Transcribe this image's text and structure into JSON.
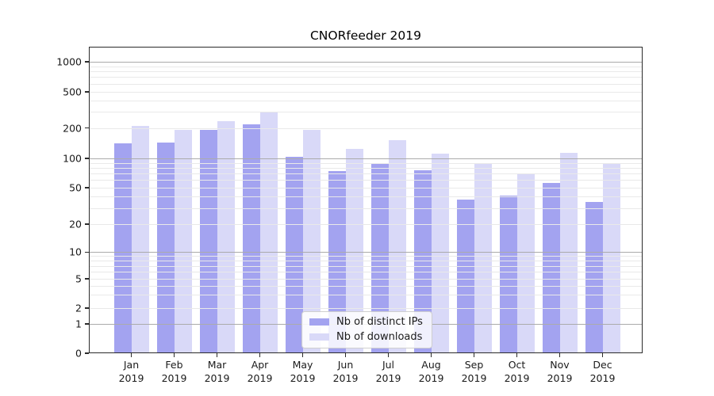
{
  "chart_data": {
    "type": "bar",
    "title": "CNORfeeder 2019",
    "categories": [
      "Jan",
      "Feb",
      "Mar",
      "Apr",
      "May",
      "Jun",
      "Jul",
      "Aug",
      "Sep",
      "Oct",
      "Nov",
      "Dec"
    ],
    "year": "2019",
    "series": [
      {
        "name": "Nb of distinct IPs",
        "color": "#a3a3f0",
        "values": [
          140,
          143,
          190,
          220,
          103,
          74,
          87,
          76,
          37,
          41,
          56,
          35
        ]
      },
      {
        "name": "Nb of downloads",
        "color": "#d9d9f8",
        "values": [
          210,
          190,
          240,
          305,
          190,
          125,
          152,
          112,
          90,
          70,
          113,
          90
        ]
      }
    ],
    "yscale": "symlog",
    "ylim": [
      0,
      1400
    ],
    "yticks": [
      0,
      1,
      2,
      5,
      10,
      20,
      50,
      100,
      200,
      500,
      1000
    ],
    "grid": true,
    "legend_position": "lower center"
  }
}
